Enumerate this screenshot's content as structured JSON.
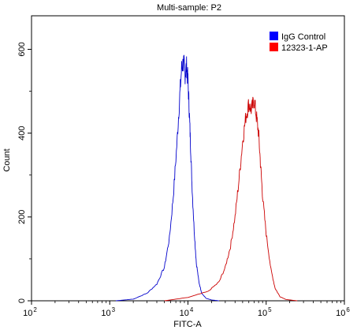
{
  "chart_data": {
    "type": "line",
    "title": "Multi-sample: P2",
    "xlabel": "FITC-A",
    "ylabel": "Count",
    "x_scale": "log",
    "xlim": [
      100,
      1000000
    ],
    "ylim": [
      0,
      680
    ],
    "x_ticks": [
      {
        "value": 100,
        "base": "10",
        "exp": "2"
      },
      {
        "value": 1000,
        "base": "10",
        "exp": "3"
      },
      {
        "value": 10000,
        "base": "10",
        "exp": "4"
      },
      {
        "value": 100000,
        "base": "10",
        "exp": "5"
      },
      {
        "value": 1000000,
        "base": "10",
        "exp": "6"
      }
    ],
    "y_ticks": [
      0,
      200,
      400,
      600
    ],
    "legend_position": "top-right",
    "grid": false,
    "series": [
      {
        "name": "IgG Control",
        "color": "#0000cc",
        "legend_color": "#0000ff",
        "x": [
          1200,
          2000,
          3000,
          4000,
          5000,
          5800,
          6500,
          7200,
          7800,
          8300,
          8800,
          9200,
          9600,
          10000,
          10400,
          10800,
          11300,
          12000,
          12800,
          13800,
          15000,
          17000,
          20000,
          25000
        ],
        "y": [
          0,
          4,
          18,
          40,
          80,
          150,
          250,
          370,
          480,
          555,
          570,
          540,
          560,
          525,
          450,
          370,
          270,
          170,
          90,
          45,
          18,
          6,
          2,
          0
        ]
      },
      {
        "name": "12323-1-AP",
        "color": "#cc0000",
        "legend_color": "#ff0000",
        "x": [
          5000,
          10000,
          18000,
          25000,
          30000,
          35000,
          40000,
          45000,
          50000,
          55000,
          60000,
          65000,
          70000,
          75000,
          80000,
          85000,
          90000,
          100000,
          115000,
          130000,
          150000,
          180000,
          250000
        ],
        "y": [
          0,
          8,
          22,
          45,
          80,
          130,
          200,
          290,
          380,
          440,
          470,
          455,
          480,
          440,
          400,
          320,
          250,
          160,
          75,
          30,
          10,
          3,
          0
        ]
      }
    ]
  }
}
